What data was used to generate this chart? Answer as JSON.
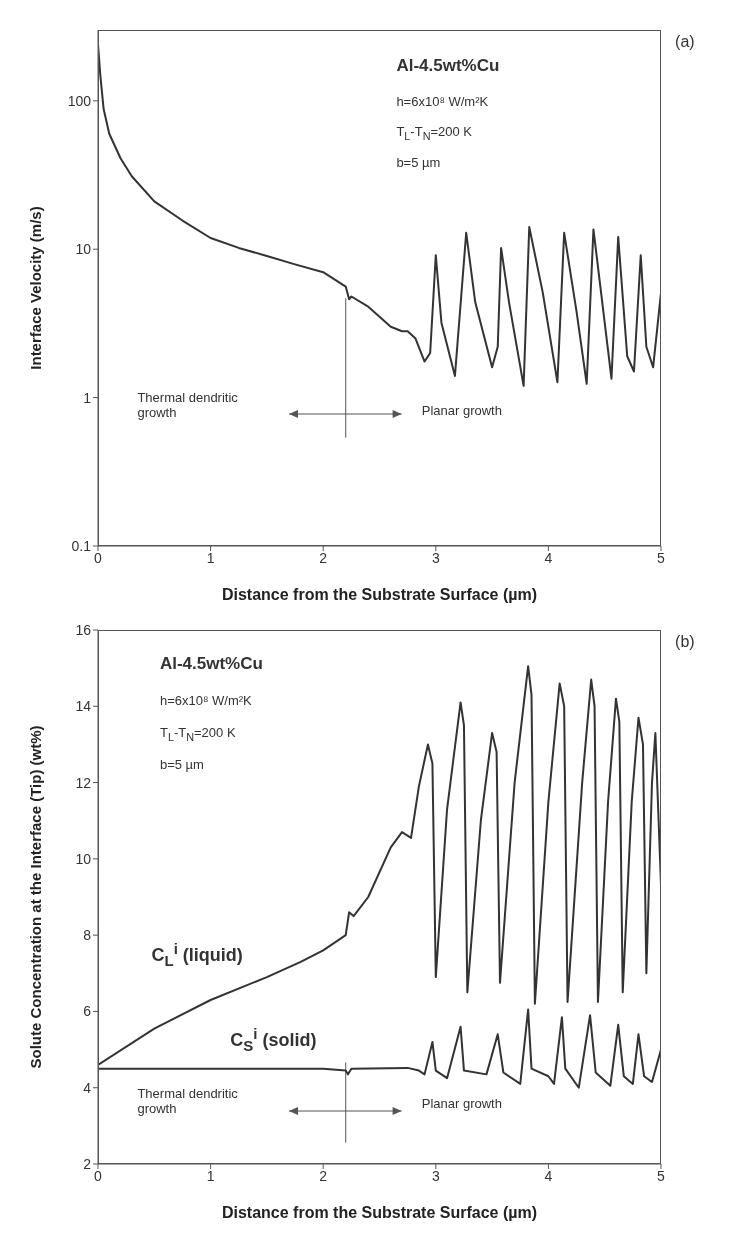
{
  "chart_data": [
    {
      "type": "line",
      "xlabel": "Distance from the Substrate Surface (µm)",
      "ylabel": "Interface Velocity (m/s)",
      "log": "y",
      "xlim": [
        0,
        5
      ],
      "xticks": [
        0,
        1,
        2,
        3,
        4,
        5
      ],
      "ylim": [
        0.1,
        300
      ],
      "yticks": [
        0.1,
        1,
        10,
        100
      ],
      "grid": false,
      "marker": "none",
      "line_style": "solid",
      "annotations": [
        "Al-4.5wt%Cu",
        "h=6x10⁸ W/m²K",
        "T$_{L}$-T$_{N}$=200 K",
        "b=5 µm",
        "Thermal dendritic growth",
        "Planar growth",
        "(a)"
      ],
      "ref_lines": [
        {
          "axis": "x",
          "value": 2.2
        }
      ],
      "series": [
        {
          "color": "#333333",
          "x": [
            0,
            0.02,
            0.05,
            0.1,
            0.2,
            0.3,
            0.5,
            0.75,
            1,
            1.25,
            1.5,
            1.75,
            2,
            2.2,
            2.23,
            2.25,
            2.4,
            2.6,
            2.7,
            2.75,
            2.82,
            2.9,
            2.95,
            3.0,
            3.05,
            3.17,
            3.27,
            3.35,
            3.5,
            3.55,
            3.58,
            3.65,
            3.78,
            3.83,
            3.95,
            4.08,
            4.14,
            4.25,
            4.34,
            4.4,
            4.5,
            4.56,
            4.62,
            4.7,
            4.76,
            4.82,
            4.87,
            4.93,
            5.0
          ],
          "values": [
            240,
            150,
            88,
            60,
            41,
            31,
            21,
            15.6,
            11.9,
            10.2,
            9.0,
            7.9,
            7.0,
            5.6,
            4.6,
            4.8,
            4.1,
            3.0,
            2.8,
            2.8,
            2.5,
            1.75,
            2.0,
            9.1,
            3.2,
            1.4,
            12.9,
            4.4,
            1.6,
            2.2,
            10.2,
            4.4,
            1.2,
            14.1,
            5.1,
            1.27,
            12.9,
            3.8,
            1.24,
            13.6,
            3.2,
            1.34,
            12.1,
            1.9,
            1.5,
            9.1,
            2.2,
            1.6,
            5.1
          ]
        }
      ]
    },
    {
      "type": "line",
      "xlabel": "Distance from the Substrate Surface (µm)",
      "ylabel": "Solute Concentration at the Interface (Tip) (wt%)",
      "xlim": [
        0,
        5
      ],
      "xticks": [
        0,
        1,
        2,
        3,
        4,
        5
      ],
      "ylim": [
        2,
        16
      ],
      "yticks": [
        2,
        4,
        6,
        8,
        10,
        12,
        14,
        16
      ],
      "grid": false,
      "marker": "none",
      "line_style": "solid",
      "annotations": [
        "Al-4.5wt%Cu",
        "h=6x10⁸ W/m²K",
        "T$_{L}$-T$_{N}$=200 K",
        "b=5 µm",
        "Thermal dendritic growth",
        "Planar growth",
        "(b)"
      ],
      "ref_lines": [
        {
          "axis": "x",
          "value": 2.2
        }
      ],
      "series": [
        {
          "name": "C$_{L}$$^{i}$ (liquid)",
          "color": "#333333",
          "x": [
            0,
            0.5,
            1,
            1.5,
            1.8,
            2,
            2.2,
            2.23,
            2.27,
            2.4,
            2.6,
            2.7,
            2.78,
            2.85,
            2.93,
            2.97,
            3.0,
            3.1,
            3.22,
            3.25,
            3.28,
            3.4,
            3.5,
            3.54,
            3.57,
            3.7,
            3.82,
            3.85,
            3.88,
            4.0,
            4.1,
            4.14,
            4.17,
            4.3,
            4.38,
            4.41,
            4.44,
            4.53,
            4.6,
            4.63,
            4.66,
            4.74,
            4.8,
            4.84,
            4.87,
            4.92,
            4.95,
            5.0
          ],
          "values": [
            4.6,
            5.55,
            6.3,
            6.9,
            7.3,
            7.6,
            8.0,
            8.6,
            8.5,
            9.0,
            10.3,
            10.7,
            10.55,
            11.9,
            13.0,
            12.5,
            6.9,
            11.3,
            14.1,
            13.5,
            6.5,
            11.0,
            13.3,
            12.8,
            6.75,
            12.0,
            15.05,
            14.3,
            6.2,
            11.5,
            14.6,
            14.0,
            6.25,
            12.0,
            14.7,
            14.0,
            6.25,
            11.5,
            14.2,
            13.6,
            6.5,
            11.5,
            13.7,
            13.0,
            7.0,
            12.0,
            13.3,
            9.3
          ]
        },
        {
          "name": "C$_{S}$$^{i}$ (solid)",
          "color": "#333333",
          "x": [
            0,
            1,
            2,
            2.2,
            2.22,
            2.25,
            2.75,
            2.85,
            2.9,
            2.97,
            3.0,
            3.1,
            3.22,
            3.25,
            3.45,
            3.55,
            3.6,
            3.75,
            3.82,
            3.85,
            4.0,
            4.05,
            4.12,
            4.15,
            4.27,
            4.37,
            4.42,
            4.55,
            4.62,
            4.67,
            4.75,
            4.8,
            4.85,
            4.92,
            5.0
          ],
          "values": [
            4.5,
            4.5,
            4.5,
            4.45,
            4.35,
            4.5,
            4.52,
            4.45,
            4.35,
            5.2,
            4.45,
            4.25,
            5.6,
            4.45,
            4.35,
            5.4,
            4.4,
            4.1,
            6.05,
            4.5,
            4.3,
            4.1,
            5.85,
            4.5,
            4.0,
            5.9,
            4.4,
            4.05,
            5.65,
            4.3,
            4.1,
            5.4,
            4.3,
            4.15,
            5.0
          ]
        }
      ]
    }
  ]
}
